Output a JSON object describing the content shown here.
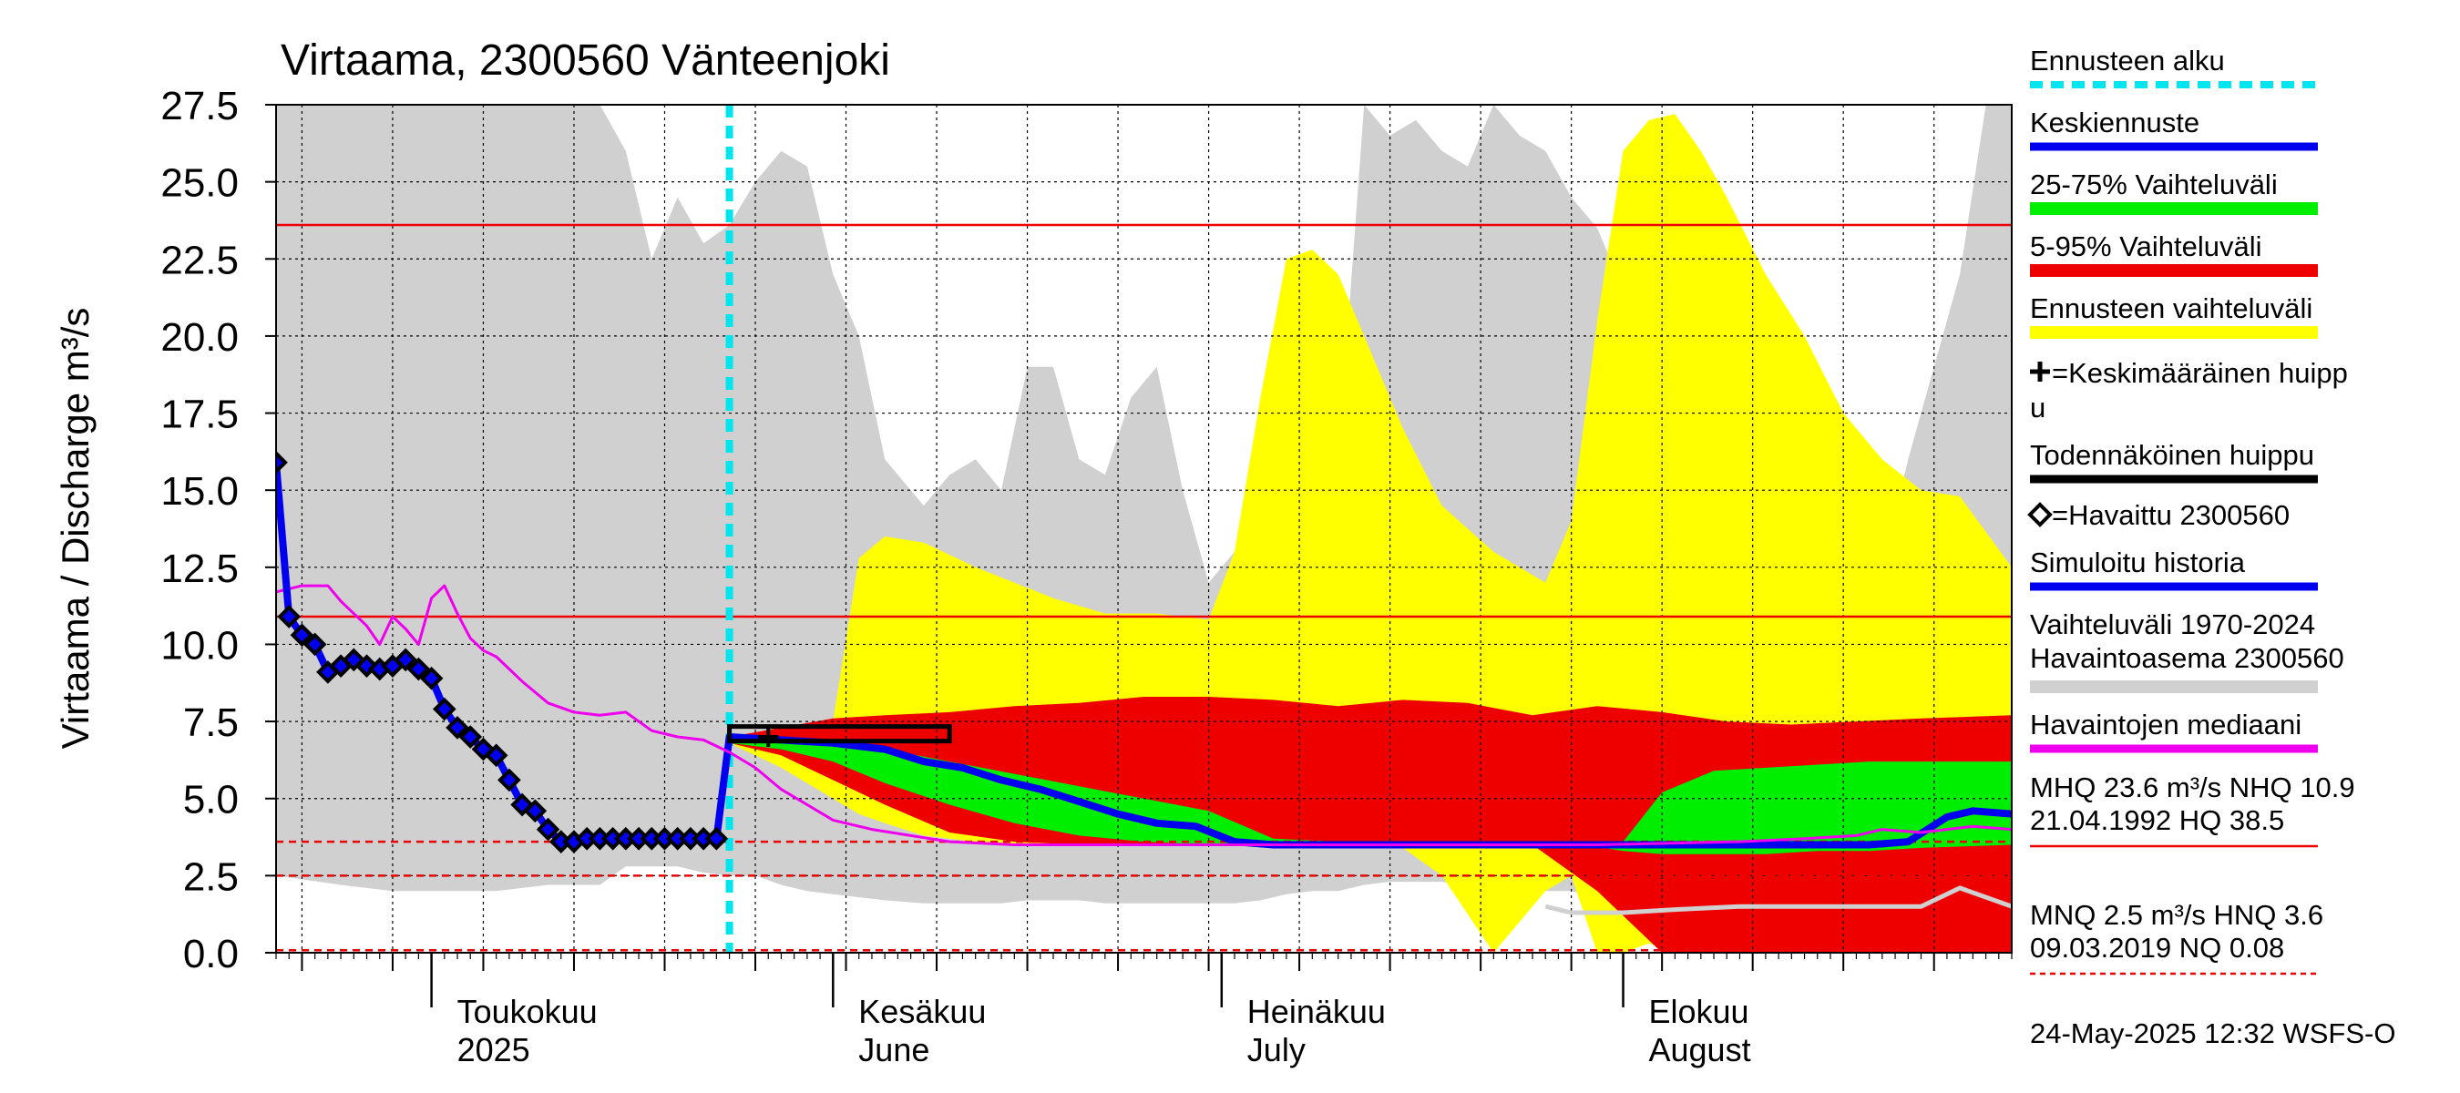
{
  "chart_data": {
    "type": "area",
    "title": "Virtaama, 2300560 Vänteenjoki",
    "ylabel": "Virtaama / Discharge   m³/s",
    "ylim": [
      0,
      27.5
    ],
    "y_ticks": [
      "0.0",
      "2.5",
      "5.0",
      "7.5",
      "10.0",
      "12.5",
      "15.0",
      "17.5",
      "20.0",
      "22.5",
      "25.0",
      "27.5"
    ],
    "x_range": [
      "2025-04-19",
      "2025-08-31"
    ],
    "forecast_start": "2025-05-24",
    "month_labels": [
      {
        "fi": "Toukokuu",
        "en": "2025",
        "date": "2025-05-01"
      },
      {
        "fi": "Kesäkuu",
        "en": "June",
        "date": "2025-06-01"
      },
      {
        "fi": "Heinäkuu",
        "en": "July",
        "date": "2025-07-01"
      },
      {
        "fi": "Elokuu",
        "en": "August",
        "date": "2025-08-01"
      }
    ],
    "reference_lines": [
      {
        "name": "MHQ",
        "value": 23.6,
        "style": "solid"
      },
      {
        "name": "NHQ",
        "value": 10.9,
        "style": "solid"
      },
      {
        "name": "MNQ",
        "value": 2.5,
        "style": "dashed"
      },
      {
        "name": "HNQ",
        "value": 3.6,
        "style": "dashed"
      },
      {
        "name": "NQ",
        "value": 0.08,
        "style": "dashed"
      }
    ],
    "historical_range": {
      "x": [
        "2025-04-19",
        "2025-04-24",
        "2025-04-28",
        "2025-05-02",
        "2025-05-06",
        "2025-05-10",
        "2025-05-14",
        "2025-05-16",
        "2025-05-18",
        "2025-05-20",
        "2025-05-22",
        "2025-05-24",
        "2025-05-26",
        "2025-05-28",
        "2025-05-30",
        "2025-06-01",
        "2025-06-03",
        "2025-06-05",
        "2025-06-08",
        "2025-06-10",
        "2025-06-12",
        "2025-06-14",
        "2025-06-16",
        "2025-06-18",
        "2025-06-20",
        "2025-06-22",
        "2025-06-24",
        "2025-06-26",
        "2025-06-28",
        "2025-06-30",
        "2025-07-02",
        "2025-07-04",
        "2025-07-06",
        "2025-07-08",
        "2025-07-10",
        "2025-07-12",
        "2025-07-14",
        "2025-07-16",
        "2025-07-18",
        "2025-07-20",
        "2025-07-22",
        "2025-07-24",
        "2025-07-26",
        "2025-07-28",
        "2025-07-30",
        "2025-08-01",
        "2025-08-03",
        "2025-08-05",
        "2025-08-07",
        "2025-08-09",
        "2025-08-11",
        "2025-08-13",
        "2025-08-15",
        "2025-08-17",
        "2025-08-19",
        "2025-08-21",
        "2025-08-23",
        "2025-08-25",
        "2025-08-27",
        "2025-08-29",
        "2025-08-31"
      ],
      "upper": [
        27.5,
        27.5,
        27.5,
        27.5,
        27.5,
        27.5,
        27.5,
        26.0,
        22.5,
        24.5,
        23.0,
        23.6,
        25.0,
        26.0,
        25.5,
        22.0,
        20.0,
        16.0,
        14.5,
        15.5,
        16.0,
        15.0,
        19.0,
        19.0,
        16.0,
        15.5,
        18.0,
        19.0,
        15.0,
        12.0,
        13.0,
        11.0,
        10.8,
        13.0,
        16.0,
        27.5,
        26.5,
        27.0,
        26.0,
        25.5,
        27.5,
        26.5,
        26.0,
        24.5,
        23.5,
        21.5,
        20.0,
        19.0,
        18.0,
        17.0,
        21.0,
        16.0,
        13.0,
        11.5,
        11.0,
        12.5,
        16.0,
        19.0,
        22.0,
        27.5,
        27.5
      ],
      "lower": [
        2.5,
        2.2,
        2.0,
        2.0,
        2.0,
        2.2,
        2.2,
        2.8,
        2.8,
        2.8,
        2.6,
        2.5,
        2.5,
        2.2,
        2.0,
        1.9,
        1.8,
        1.7,
        1.6,
        1.6,
        1.6,
        1.6,
        1.7,
        1.7,
        1.7,
        1.6,
        1.6,
        1.6,
        1.6,
        1.6,
        1.6,
        1.7,
        1.9,
        2.0,
        2.0,
        2.2,
        2.3,
        2.3,
        2.3,
        2.2,
        2.2,
        2.1,
        2.0,
        2.0,
        1.8,
        1.6,
        1.5,
        1.3,
        1.2,
        1.2,
        1.3,
        1.5,
        1.7,
        2.0,
        2.2,
        2.4,
        2.6,
        3.0,
        3.5,
        4.2,
        4.0
      ]
    },
    "forecast_range": {
      "x": [
        "2025-05-24",
        "2025-05-28",
        "2025-06-01",
        "2025-06-03",
        "2025-06-05",
        "2025-06-08",
        "2025-06-12",
        "2025-06-15",
        "2025-06-18",
        "2025-06-22",
        "2025-06-26",
        "2025-06-30",
        "2025-07-02",
        "2025-07-04",
        "2025-07-06",
        "2025-07-08",
        "2025-07-10",
        "2025-07-12",
        "2025-07-15",
        "2025-07-18",
        "2025-07-22",
        "2025-07-26",
        "2025-07-28",
        "2025-07-30",
        "2025-08-01",
        "2025-08-03",
        "2025-08-05",
        "2025-08-07",
        "2025-08-09",
        "2025-08-12",
        "2025-08-15",
        "2025-08-18",
        "2025-08-21",
        "2025-08-24",
        "2025-08-27",
        "2025-08-31"
      ],
      "upper": [
        7.0,
        7.2,
        7.5,
        12.8,
        13.5,
        13.3,
        12.5,
        12.0,
        11.5,
        11.0,
        11.0,
        10.8,
        13.0,
        18.0,
        22.5,
        22.8,
        22.0,
        20.0,
        17.0,
        14.5,
        13.0,
        12.0,
        14.0,
        20.5,
        26.0,
        27.0,
        27.2,
        26.0,
        24.5,
        22.0,
        20.0,
        17.5,
        16.0,
        15.0,
        14.8,
        12.5
      ],
      "lower": [
        6.8,
        6.0,
        5.0,
        4.5,
        4.2,
        3.8,
        3.6,
        3.5,
        3.5,
        3.5,
        3.5,
        3.5,
        3.5,
        3.5,
        3.5,
        3.5,
        3.5,
        3.5,
        3.4,
        2.5,
        0.0,
        2.0,
        2.5,
        0.0,
        0.0,
        0.3,
        0.0,
        0.0,
        0.0,
        0.3,
        0.0,
        0.3,
        0.0,
        0.0,
        0.0,
        0.0
      ]
    },
    "p5_95": {
      "x": [
        "2025-05-24",
        "2025-05-28",
        "2025-06-01",
        "2025-06-05",
        "2025-06-10",
        "2025-06-15",
        "2025-06-20",
        "2025-06-25",
        "2025-06-30",
        "2025-07-05",
        "2025-07-10",
        "2025-07-15",
        "2025-07-20",
        "2025-07-25",
        "2025-07-30",
        "2025-08-04",
        "2025-08-09",
        "2025-08-14",
        "2025-08-19",
        "2025-08-24",
        "2025-08-31"
      ],
      "upper": [
        7.0,
        7.3,
        7.6,
        7.7,
        7.8,
        8.0,
        8.1,
        8.3,
        8.3,
        8.2,
        8.0,
        8.2,
        8.1,
        7.7,
        8.0,
        7.8,
        7.5,
        7.4,
        7.5,
        7.6,
        7.7
      ],
      "lower": [
        6.8,
        6.4,
        5.6,
        4.8,
        3.9,
        3.6,
        3.5,
        3.5,
        3.5,
        3.5,
        3.5,
        3.5,
        3.5,
        3.5,
        2.0,
        0.0,
        0.0,
        0.0,
        0.0,
        0.0,
        0.0
      ]
    },
    "p25_75": {
      "x": [
        "2025-05-24",
        "2025-05-28",
        "2025-06-01",
        "2025-06-05",
        "2025-06-10",
        "2025-06-15",
        "2025-06-20",
        "2025-06-25",
        "2025-06-30",
        "2025-07-05",
        "2025-07-10",
        "2025-07-15",
        "2025-07-20",
        "2025-07-25",
        "2025-07-29",
        "2025-08-01",
        "2025-08-04",
        "2025-08-08",
        "2025-08-12",
        "2025-08-16",
        "2025-08-20",
        "2025-08-24",
        "2025-08-31"
      ],
      "upper": [
        6.9,
        6.9,
        6.8,
        6.6,
        6.2,
        5.8,
        5.4,
        5.0,
        4.6,
        3.7,
        3.6,
        3.6,
        3.6,
        3.6,
        3.6,
        3.6,
        5.2,
        5.9,
        6.0,
        6.1,
        6.2,
        6.2,
        6.2
      ],
      "lower": [
        6.8,
        6.6,
        6.2,
        5.5,
        4.8,
        4.2,
        3.8,
        3.6,
        3.5,
        3.5,
        3.5,
        3.5,
        3.5,
        3.5,
        3.5,
        3.3,
        3.2,
        3.2,
        3.2,
        3.3,
        3.3,
        3.4,
        3.5
      ]
    },
    "series": [
      {
        "name": "Keskiennuste",
        "color": "#0000ee",
        "x": [
          "2025-05-23",
          "2025-05-24",
          "2025-05-28",
          "2025-06-01",
          "2025-06-05",
          "2025-06-08",
          "2025-06-11",
          "2025-06-14",
          "2025-06-17",
          "2025-06-20",
          "2025-06-23",
          "2025-06-26",
          "2025-06-29",
          "2025-07-02",
          "2025-07-05",
          "2025-07-10",
          "2025-07-15",
          "2025-07-20",
          "2025-07-25",
          "2025-07-30",
          "2025-08-05",
          "2025-08-10",
          "2025-08-15",
          "2025-08-20",
          "2025-08-23",
          "2025-08-26",
          "2025-08-28",
          "2025-08-31"
        ],
        "y": [
          3.7,
          7.0,
          6.9,
          6.8,
          6.6,
          6.2,
          6.0,
          5.6,
          5.3,
          4.9,
          4.5,
          4.2,
          4.1,
          3.6,
          3.5,
          3.5,
          3.5,
          3.5,
          3.5,
          3.5,
          3.5,
          3.5,
          3.5,
          3.5,
          3.6,
          4.4,
          4.6,
          4.5
        ]
      },
      {
        "name": "Havaittu 2300560",
        "color": "#000000",
        "x": [
          "2025-04-19",
          "2025-04-20",
          "2025-04-21",
          "2025-04-22",
          "2025-04-23",
          "2025-04-24",
          "2025-04-25",
          "2025-04-26",
          "2025-04-27",
          "2025-04-28",
          "2025-04-29",
          "2025-04-30",
          "2025-05-01",
          "2025-05-02",
          "2025-05-03",
          "2025-05-04",
          "2025-05-05",
          "2025-05-06",
          "2025-05-07",
          "2025-05-08",
          "2025-05-09",
          "2025-05-10",
          "2025-05-11",
          "2025-05-12",
          "2025-05-13",
          "2025-05-14",
          "2025-05-15",
          "2025-05-16",
          "2025-05-17",
          "2025-05-18",
          "2025-05-19",
          "2025-05-20",
          "2025-05-21",
          "2025-05-22",
          "2025-05-23"
        ],
        "y": [
          15.9,
          10.9,
          10.3,
          10.0,
          9.1,
          9.3,
          9.5,
          9.3,
          9.2,
          9.3,
          9.5,
          9.2,
          8.9,
          7.9,
          7.3,
          7.0,
          6.6,
          6.4,
          5.6,
          4.8,
          4.6,
          4.0,
          3.6,
          3.6,
          3.7,
          3.7,
          3.7,
          3.7,
          3.7,
          3.7,
          3.7,
          3.7,
          3.7,
          3.7,
          3.7
        ]
      },
      {
        "name": "Havaintojen mediaani",
        "color": "#ee00ee",
        "x": [
          "2025-04-19",
          "2025-04-21",
          "2025-04-23",
          "2025-04-24",
          "2025-04-26",
          "2025-04-27",
          "2025-04-28",
          "2025-04-29",
          "2025-04-30",
          "2025-05-01",
          "2025-05-02",
          "2025-05-03",
          "2025-05-04",
          "2025-05-05",
          "2025-05-06",
          "2025-05-08",
          "2025-05-10",
          "2025-05-12",
          "2025-05-14",
          "2025-05-16",
          "2025-05-18",
          "2025-05-20",
          "2025-05-22",
          "2025-05-24",
          "2025-05-26",
          "2025-05-28",
          "2025-05-30",
          "2025-06-01",
          "2025-06-04",
          "2025-06-07",
          "2025-06-10",
          "2025-06-15",
          "2025-06-20",
          "2025-07-01",
          "2025-07-15",
          "2025-07-30",
          "2025-08-10",
          "2025-08-15",
          "2025-08-19",
          "2025-08-21",
          "2025-08-24",
          "2025-08-28",
          "2025-08-31"
        ],
        "y": [
          11.7,
          11.9,
          11.9,
          11.4,
          10.6,
          10.0,
          10.9,
          10.5,
          10.0,
          11.5,
          11.9,
          11.0,
          10.2,
          9.8,
          9.6,
          8.8,
          8.1,
          7.8,
          7.7,
          7.8,
          7.2,
          7.0,
          6.9,
          6.5,
          6.0,
          5.3,
          4.8,
          4.3,
          4.0,
          3.8,
          3.6,
          3.5,
          3.5,
          3.5,
          3.5,
          3.5,
          3.6,
          3.7,
          3.8,
          4.0,
          3.9,
          4.1,
          4.0
        ]
      },
      {
        "name": "Simuloitu historia",
        "color": "#0000ee",
        "x": [
          "2025-04-19",
          "2025-04-20",
          "2025-04-21",
          "2025-04-22",
          "2025-04-23",
          "2025-04-24",
          "2025-04-25",
          "2025-04-26",
          "2025-04-27",
          "2025-04-28",
          "2025-04-29",
          "2025-04-30",
          "2025-05-01",
          "2025-05-02",
          "2025-05-03",
          "2025-05-04",
          "2025-05-05",
          "2025-05-06",
          "2025-05-07",
          "2025-05-08",
          "2025-05-09",
          "2025-05-10",
          "2025-05-11",
          "2025-05-12",
          "2025-05-13",
          "2025-05-14",
          "2025-05-15",
          "2025-05-16",
          "2025-05-17",
          "2025-05-18",
          "2025-05-19",
          "2025-05-20",
          "2025-05-21",
          "2025-05-22",
          "2025-05-23"
        ],
        "y": [
          15.9,
          10.9,
          10.3,
          10.0,
          9.1,
          9.3,
          9.5,
          9.3,
          9.2,
          9.3,
          9.5,
          9.2,
          8.9,
          7.9,
          7.3,
          7.0,
          6.6,
          6.4,
          5.6,
          4.8,
          4.6,
          4.0,
          3.6,
          3.6,
          3.7,
          3.7,
          3.7,
          3.7,
          3.7,
          3.7,
          3.7,
          3.7,
          3.7,
          3.7,
          3.7
        ]
      },
      {
        "name": "Vaihteluväli 1970-2024 Havaintoasema 2300560",
        "color": "#d0d0d0",
        "x": [
          "2025-07-26",
          "2025-07-28",
          "2025-07-30",
          "2025-08-01",
          "2025-08-05",
          "2025-08-10",
          "2025-08-14",
          "2025-08-18",
          "2025-08-21",
          "2025-08-24",
          "2025-08-27",
          "2025-08-31"
        ],
        "y": [
          1.5,
          1.3,
          1.3,
          1.3,
          1.4,
          1.5,
          1.5,
          1.5,
          1.5,
          1.5,
          2.1,
          1.5
        ]
      }
    ],
    "mean_peak": {
      "x_start": "2025-05-24",
      "x_end": "2025-06-10",
      "y": 7.0,
      "marker_date": "2025-05-27"
    },
    "probable_peak": {
      "x_start": "2025-05-24",
      "x_end": "2025-06-10",
      "y": 7.1
    },
    "legend": [
      {
        "label": "Ennusteen alku",
        "color": "#00e5ee",
        "kind": "dashed"
      },
      {
        "label": "Keskiennuste",
        "color": "#0000ee",
        "kind": "line"
      },
      {
        "label": "25-75% Vaihteluväli",
        "color": "#00ee00",
        "kind": "band"
      },
      {
        "label": "5-95% Vaihteluväli",
        "color": "#ee0000",
        "kind": "band"
      },
      {
        "label": "Ennusteen vaihteluväli",
        "color": "#ffff00",
        "kind": "band"
      },
      {
        "label": "=Keskimääräinen huipp",
        "label2": "u",
        "color": "#000000",
        "kind": "plus"
      },
      {
        "label": "Todennäköinen huippu",
        "color": "#000000",
        "kind": "line"
      },
      {
        "label": "=Havaittu 2300560",
        "color": "#000000",
        "kind": "diamond"
      },
      {
        "label": "Simuloitu historia",
        "color": "#0000ee",
        "kind": "line"
      },
      {
        "label": "Vaihteluväli 1970-2024",
        "label2": " Havaintoasema 2300560",
        "color": "#d0d0d0",
        "kind": "band"
      },
      {
        "label": "Havaintojen mediaani",
        "color": "#ee00ee",
        "kind": "line"
      }
    ],
    "stats": [
      {
        "line1": "MHQ 23.6 m³/s NHQ 10.9",
        "line2": "21.04.1992 HQ 38.5",
        "color": "#ee0000",
        "kind": "solid"
      },
      {
        "line1": "MNQ  2.5 m³/s HNQ  3.6",
        "line2": "09.03.2019 NQ 0.08",
        "color": "#ee0000",
        "kind": "dashed"
      }
    ],
    "timestamp": "24-May-2025 12:32 WSFS-O",
    "colors": {
      "historical": "#d0d0d0",
      "forecast": "#ffff00",
      "p5_95": "#ee0000",
      "p25_75": "#00ee00",
      "forecast_start": "#00e5ee",
      "reference": "#ee0000"
    }
  }
}
